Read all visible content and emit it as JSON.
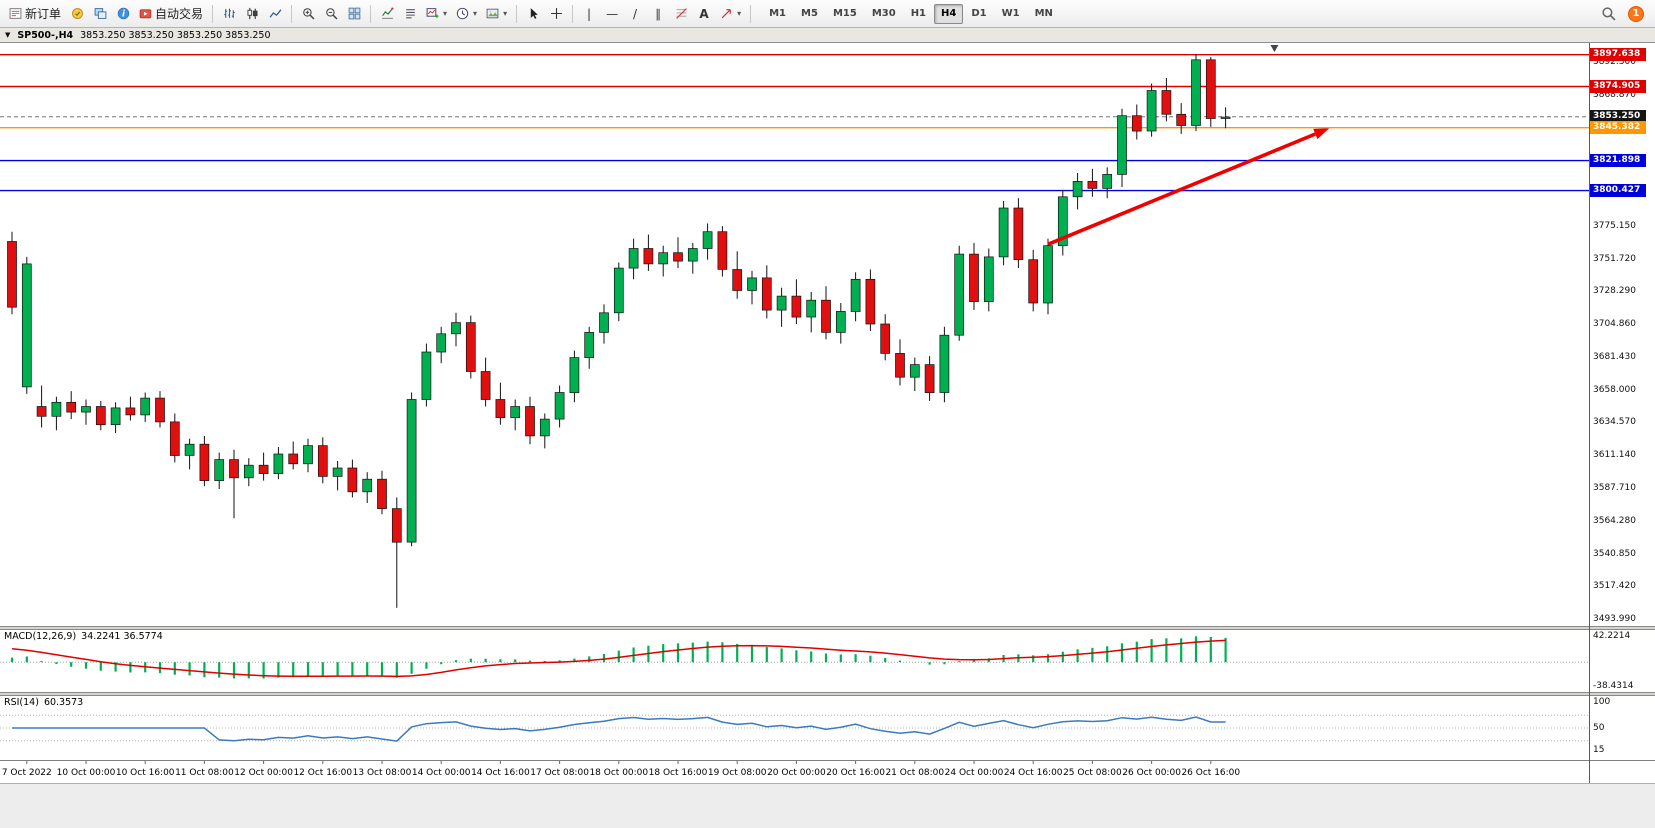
{
  "window": {
    "badge_count": "1"
  },
  "toolbar": {
    "new_order_label": "新订单",
    "autotrading_label": "自动交易",
    "timeframes": [
      "M1",
      "M5",
      "M15",
      "M30",
      "H1",
      "H4",
      "D1",
      "W1",
      "MN"
    ],
    "active_timeframe": "H4"
  },
  "chart_header": {
    "title": "SP500-,H4",
    "ohlc": "3853.250 3853.250 3853.250 3853.250"
  },
  "indicators": {
    "macd_title": "MACD(12,26,9)",
    "macd_values": "34.2241 36.5774",
    "rsi_title": "RSI(14)",
    "rsi_value": "60.3573"
  },
  "chart_data": {
    "type": "candlestick",
    "symbol": "SP500-",
    "timeframe": "H4",
    "price_range": [
      3489,
      3906
    ],
    "colors": {
      "up": "#00b050",
      "down": "#e01010",
      "wick": "#111111",
      "macd_hist": "#00b050",
      "macd_signal": "#e00000",
      "rsi_line": "#3a7abf",
      "arrow": "#f00000"
    },
    "candles": [
      [
        3764,
        3771,
        3712,
        3717
      ],
      [
        3660,
        3753,
        3655,
        3748
      ],
      [
        3646,
        3661,
        3631,
        3639
      ],
      [
        3639,
        3653,
        3629,
        3649
      ],
      [
        3649,
        3657,
        3637,
        3642
      ],
      [
        3642,
        3651,
        3633,
        3646
      ],
      [
        3646,
        3650,
        3629,
        3633
      ],
      [
        3633,
        3649,
        3627,
        3645
      ],
      [
        3645,
        3653,
        3636,
        3640
      ],
      [
        3640,
        3656,
        3635,
        3652
      ],
      [
        3652,
        3657,
        3631,
        3635
      ],
      [
        3635,
        3641,
        3606,
        3611
      ],
      [
        3611,
        3623,
        3601,
        3619
      ],
      [
        3619,
        3625,
        3589,
        3593
      ],
      [
        3593,
        3613,
        3587,
        3608
      ],
      [
        3608,
        3615,
        3566,
        3595
      ],
      [
        3595,
        3609,
        3589,
        3604
      ],
      [
        3604,
        3613,
        3593,
        3598
      ],
      [
        3598,
        3617,
        3594,
        3612
      ],
      [
        3612,
        3621,
        3601,
        3605
      ],
      [
        3605,
        3623,
        3599,
        3618
      ],
      [
        3618,
        3624,
        3591,
        3596
      ],
      [
        3596,
        3607,
        3586,
        3602
      ],
      [
        3602,
        3608,
        3581,
        3585
      ],
      [
        3585,
        3599,
        3577,
        3594
      ],
      [
        3594,
        3600,
        3569,
        3573
      ],
      [
        3573,
        3581,
        3502,
        3549
      ],
      [
        3549,
        3656,
        3546,
        3651
      ],
      [
        3651,
        3691,
        3646,
        3685
      ],
      [
        3685,
        3703,
        3677,
        3698
      ],
      [
        3698,
        3713,
        3689,
        3706
      ],
      [
        3706,
        3711,
        3666,
        3671
      ],
      [
        3671,
        3681,
        3646,
        3651
      ],
      [
        3651,
        3663,
        3633,
        3638
      ],
      [
        3638,
        3651,
        3629,
        3646
      ],
      [
        3646,
        3653,
        3619,
        3625
      ],
      [
        3625,
        3641,
        3616,
        3637
      ],
      [
        3637,
        3661,
        3631,
        3656
      ],
      [
        3656,
        3686,
        3649,
        3681
      ],
      [
        3681,
        3703,
        3673,
        3699
      ],
      [
        3699,
        3719,
        3691,
        3713
      ],
      [
        3713,
        3749,
        3707,
        3745
      ],
      [
        3745,
        3766,
        3737,
        3759
      ],
      [
        3759,
        3769,
        3743,
        3748
      ],
      [
        3748,
        3761,
        3739,
        3756
      ],
      [
        3756,
        3767,
        3745,
        3750
      ],
      [
        3750,
        3763,
        3741,
        3759
      ],
      [
        3759,
        3777,
        3751,
        3771
      ],
      [
        3771,
        3775,
        3739,
        3744
      ],
      [
        3744,
        3757,
        3723,
        3729
      ],
      [
        3729,
        3743,
        3719,
        3738
      ],
      [
        3738,
        3747,
        3709,
        3715
      ],
      [
        3715,
        3731,
        3703,
        3725
      ],
      [
        3725,
        3737,
        3705,
        3710
      ],
      [
        3710,
        3728,
        3699,
        3722
      ],
      [
        3722,
        3732,
        3694,
        3699
      ],
      [
        3699,
        3720,
        3691,
        3714
      ],
      [
        3714,
        3742,
        3707,
        3737
      ],
      [
        3737,
        3744,
        3700,
        3705
      ],
      [
        3705,
        3712,
        3679,
        3684
      ],
      [
        3684,
        3694,
        3661,
        3667
      ],
      [
        3667,
        3681,
        3657,
        3676
      ],
      [
        3676,
        3682,
        3650,
        3656
      ],
      [
        3656,
        3703,
        3649,
        3697
      ],
      [
        3697,
        3761,
        3693,
        3755
      ],
      [
        3755,
        3763,
        3715,
        3721
      ],
      [
        3721,
        3759,
        3714,
        3753
      ],
      [
        3753,
        3793,
        3747,
        3788
      ],
      [
        3788,
        3795,
        3745,
        3751
      ],
      [
        3751,
        3758,
        3714,
        3720
      ],
      [
        3720,
        3766,
        3712,
        3761
      ],
      [
        3761,
        3801,
        3754,
        3796
      ],
      [
        3796,
        3813,
        3787,
        3807
      ],
      [
        3807,
        3816,
        3796,
        3802
      ],
      [
        3802,
        3817,
        3795,
        3812
      ],
      [
        3812,
        3859,
        3803,
        3854
      ],
      [
        3854,
        3862,
        3837,
        3843
      ],
      [
        3843,
        3877,
        3839,
        3872
      ],
      [
        3872,
        3881,
        3850,
        3855
      ],
      [
        3855,
        3863,
        3841,
        3847
      ],
      [
        3847,
        3898,
        3843,
        3894
      ],
      [
        3894,
        3896,
        3846,
        3852
      ],
      [
        3852,
        3860,
        3845,
        3853
      ]
    ],
    "x_labels": [
      {
        "i": 1,
        "t": "7 Oct 2022"
      },
      {
        "i": 5,
        "t": "10 Oct 00:00"
      },
      {
        "i": 9,
        "t": "10 Oct 16:00"
      },
      {
        "i": 13,
        "t": "11 Oct 08:00"
      },
      {
        "i": 17,
        "t": "12 Oct 00:00"
      },
      {
        "i": 21,
        "t": "12 Oct 16:00"
      },
      {
        "i": 25,
        "t": "13 Oct 08:00"
      },
      {
        "i": 29,
        "t": "14 Oct 00:00"
      },
      {
        "i": 33,
        "t": "14 Oct 16:00"
      },
      {
        "i": 37,
        "t": "17 Oct 08:00"
      },
      {
        "i": 41,
        "t": "18 Oct 00:00"
      },
      {
        "i": 45,
        "t": "18 Oct 16:00"
      },
      {
        "i": 49,
        "t": "19 Oct 08:00"
      },
      {
        "i": 53,
        "t": "20 Oct 00:00"
      },
      {
        "i": 57,
        "t": "20 Oct 16:00"
      },
      {
        "i": 61,
        "t": "21 Oct 08:00"
      },
      {
        "i": 65,
        "t": "24 Oct 00:00"
      },
      {
        "i": 69,
        "t": "24 Oct 16:00"
      },
      {
        "i": 73,
        "t": "25 Oct 08:00"
      },
      {
        "i": 77,
        "t": "26 Oct 00:00"
      },
      {
        "i": 81,
        "t": "26 Oct 16:00"
      }
    ],
    "h_lines": [
      {
        "price": 3897.638,
        "color": "#e00000",
        "style": "solid"
      },
      {
        "price": 3874.905,
        "color": "#e00000",
        "style": "solid"
      },
      {
        "price": 3853.25,
        "color": "#999999",
        "style": "dashed"
      },
      {
        "price": 3845.382,
        "color": "#ff9800",
        "style": "solid"
      },
      {
        "price": 3821.898,
        "color": "#0000dd",
        "style": "solid"
      },
      {
        "price": 3800.427,
        "color": "#0000dd",
        "style": "solid"
      }
    ],
    "price_tags": [
      {
        "price": 3897.638,
        "label": "3897.638",
        "bg": "#e00000"
      },
      {
        "price": 3874.905,
        "label": "3874.905",
        "bg": "#e00000"
      },
      {
        "price": 3853.25,
        "label": "3853.250",
        "bg": "#151515"
      },
      {
        "price": 3845.382,
        "label": "3845.382",
        "bg": "#ff9800"
      },
      {
        "price": 3821.898,
        "label": "3821.898",
        "bg": "#0000dd"
      },
      {
        "price": 3800.427,
        "label": "3800.427",
        "bg": "#0000dd"
      }
    ],
    "y_plain_labels": [
      3892.3,
      3868.87,
      3845.44,
      3822.01,
      3798.58,
      3775.15,
      3751.72,
      3728.29,
      3704.86,
      3681.43,
      3658.0,
      3634.57,
      3611.14,
      3587.71,
      3564.28,
      3540.85,
      3517.42,
      3493.99
    ],
    "macd_panel": {
      "params": [
        12,
        26,
        9
      ],
      "scale": [
        {
          "v": 42.2214,
          "t": "42.2214"
        },
        {
          "v": -38.4314,
          "t": "-38.4314"
        }
      ],
      "range": [
        -48,
        52
      ]
    },
    "rsi_panel": {
      "period": 14,
      "scale": [
        {
          "v": 100,
          "t": "100"
        },
        {
          "v": 50,
          "t": "50"
        },
        {
          "v": 15,
          "t": "15"
        }
      ],
      "levels": [
        70,
        50,
        30
      ],
      "range": [
        0,
        100
      ]
    },
    "arrow": {
      "from_i": 70,
      "from_price": 3762,
      "to_i": 89,
      "to_price": 3845
    },
    "shift_marker_i": 85.3
  }
}
